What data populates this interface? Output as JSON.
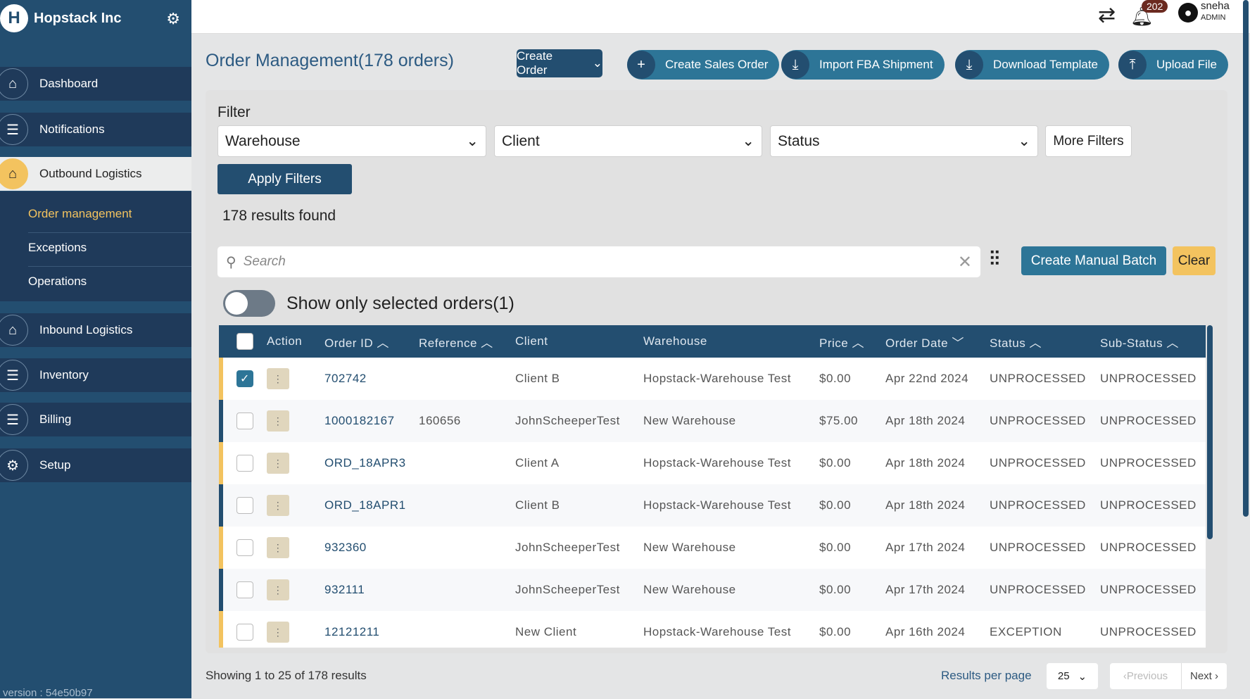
{
  "sidebar": {
    "brand": "Hopstack Inc",
    "items": [
      {
        "label": "Dashboard",
        "icon": "warehouse-icon"
      },
      {
        "label": "Notifications",
        "icon": "checklist-icon"
      },
      {
        "label": "Outbound Logistics",
        "icon": "warehouse-icon",
        "active": true
      },
      {
        "label": "Inbound Logistics",
        "icon": "warehouse-icon"
      },
      {
        "label": "Inventory",
        "icon": "checklist-icon"
      },
      {
        "label": "Billing",
        "icon": "checklist-icon"
      },
      {
        "label": "Setup",
        "icon": "setup-icon"
      }
    ],
    "submenu": [
      "Order management",
      "Exceptions",
      "Operations"
    ],
    "version": "version : 54e50b97"
  },
  "topbar": {
    "notifications_count": "202",
    "user_name": "sneha",
    "user_role": "ADMIN"
  },
  "header": {
    "title": "Order Management(178 orders)",
    "create_order": "Create Order",
    "create_sales_order": "Create Sales Order",
    "import_fba": "Import FBA Shipment",
    "download_template": "Download Template",
    "upload_file": "Upload File"
  },
  "filter": {
    "label": "Filter",
    "warehouse": "Warehouse",
    "client": "Client",
    "status": "Status",
    "more": "More Filters",
    "apply": "Apply Filters",
    "results": "178 results found"
  },
  "search": {
    "placeholder": "Search",
    "create_batch": "Create Manual Batch",
    "clear": "Clear",
    "toggle_label": "Show only selected orders(1)"
  },
  "table": {
    "headers": [
      "Action",
      "Order ID",
      "Reference",
      "Client",
      "Warehouse",
      "Price",
      "Order Date",
      "Status",
      "Sub-Status"
    ],
    "rows": [
      {
        "checked": true,
        "order_id": "702742",
        "reference": "",
        "client": "Client B",
        "warehouse": "Hopstack-Warehouse Test",
        "price": "$0.00",
        "date": "Apr 22nd 2024",
        "status": "UNPROCESSED",
        "sub_status": "UNPROCESSED"
      },
      {
        "checked": false,
        "order_id": "1000182167",
        "reference": "160656",
        "client": "JohnScheeperTest",
        "warehouse": "New Warehouse",
        "price": "$75.00",
        "date": "Apr 18th 2024",
        "status": "UNPROCESSED",
        "sub_status": "UNPROCESSED"
      },
      {
        "checked": false,
        "order_id": "ORD_18APR3",
        "reference": "",
        "client": "Client A",
        "warehouse": "Hopstack-Warehouse Test",
        "price": "$0.00",
        "date": "Apr 18th 2024",
        "status": "UNPROCESSED",
        "sub_status": "UNPROCESSED"
      },
      {
        "checked": false,
        "order_id": "ORD_18APR1",
        "reference": "",
        "client": "Client B",
        "warehouse": "Hopstack-Warehouse Test",
        "price": "$0.00",
        "date": "Apr 18th 2024",
        "status": "UNPROCESSED",
        "sub_status": "UNPROCESSED"
      },
      {
        "checked": false,
        "order_id": "932360",
        "reference": "",
        "client": "JohnScheeperTest",
        "warehouse": "New Warehouse",
        "price": "$0.00",
        "date": "Apr 17th 2024",
        "status": "UNPROCESSED",
        "sub_status": "UNPROCESSED"
      },
      {
        "checked": false,
        "order_id": "932111",
        "reference": "",
        "client": "JohnScheeperTest",
        "warehouse": "New Warehouse",
        "price": "$0.00",
        "date": "Apr 17th 2024",
        "status": "UNPROCESSED",
        "sub_status": "UNPROCESSED"
      },
      {
        "checked": false,
        "order_id": "12121211",
        "reference": "",
        "client": "New Client",
        "warehouse": "Hopstack-Warehouse Test",
        "price": "$0.00",
        "date": "Apr 16th 2024",
        "status": "EXCEPTION",
        "sub_status": "UNPROCESSED"
      }
    ]
  },
  "footer": {
    "showing": "Showing 1 to 25 of 178 results",
    "per_page_label": "Results per page",
    "per_page": "25",
    "previous": "Previous",
    "next": "Next"
  },
  "colors": {
    "primary": "#234e70",
    "accent": "#2d7597",
    "yellow": "#f3c35f"
  }
}
